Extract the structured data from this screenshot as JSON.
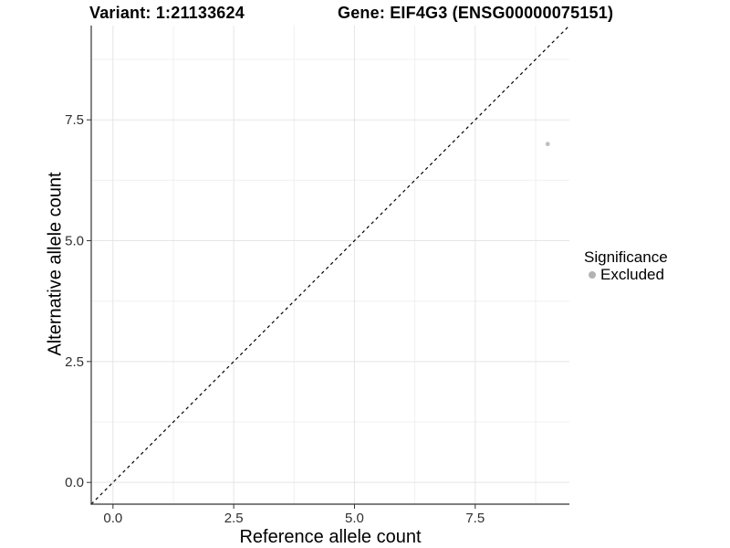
{
  "chart_data": {
    "type": "scatter",
    "title_left": "Variant: 1:21133624",
    "title_right": "Gene: EIF4G3 (ENSG00000075151)",
    "xlabel": "Reference allele count",
    "ylabel": "Alternative allele count",
    "xlim": [
      -0.45,
      9.45
    ],
    "ylim": [
      -0.45,
      9.45
    ],
    "x_ticks": [
      0,
      2.5,
      5,
      7.5
    ],
    "x_tick_labels": [
      "0.0",
      "2.5",
      "5.0",
      "7.5"
    ],
    "y_ticks": [
      0,
      2.5,
      5,
      7.5
    ],
    "y_tick_labels": [
      "0.0",
      "2.5",
      "5.0",
      "7.5"
    ],
    "x_minor_ticks": [
      1.25,
      3.75,
      6.25,
      8.75
    ],
    "y_minor_ticks": [
      1.25,
      3.75,
      6.25,
      8.75
    ],
    "grid": "major and minor gridlines, white panel background",
    "identity_line": {
      "equation": "y = x",
      "style": "dashed",
      "color": "#000000",
      "from": [
        -0.45,
        -0.45
      ],
      "to": [
        9.45,
        9.45
      ]
    },
    "series": [
      {
        "name": "Excluded",
        "color": "#bfbfbf",
        "point_radius": 2.4,
        "points": [
          [
            9,
            7
          ]
        ]
      }
    ],
    "legend": {
      "title": "Significance",
      "position": "right",
      "entries": [
        {
          "label": "Excluded",
          "color": "#b3b3b3"
        }
      ]
    }
  },
  "colors": {
    "background": "#ffffff",
    "axis_line": "#333333",
    "tick_mark": "#333333",
    "tick_label": "#303030",
    "grid_major": "#e5e5e5",
    "grid_minor": "#f0f0f0",
    "title_text": "#000000"
  }
}
